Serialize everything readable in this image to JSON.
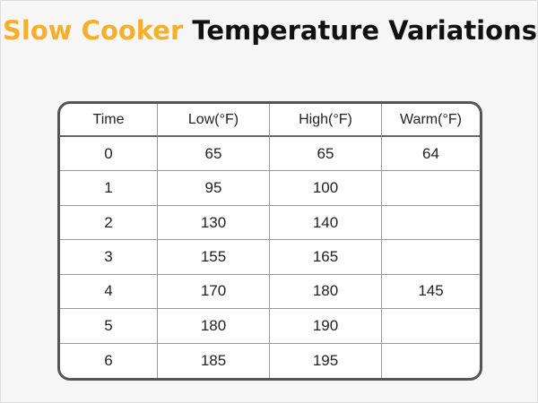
{
  "header": {
    "title_highlight": "Slow Cooker",
    "title_rest": "Temperature Variations"
  },
  "table": {
    "columns": [
      "Time",
      "Low(°F)",
      "High(°F)",
      "Warm(°F)"
    ],
    "rows": [
      [
        0,
        65,
        65,
        64
      ],
      [
        1,
        95,
        100,
        null
      ],
      [
        2,
        130,
        140,
        null
      ],
      [
        3,
        155,
        165,
        null
      ],
      [
        4,
        170,
        180,
        145
      ],
      [
        5,
        180,
        190,
        null
      ],
      [
        6,
        185,
        195,
        null
      ]
    ]
  }
}
